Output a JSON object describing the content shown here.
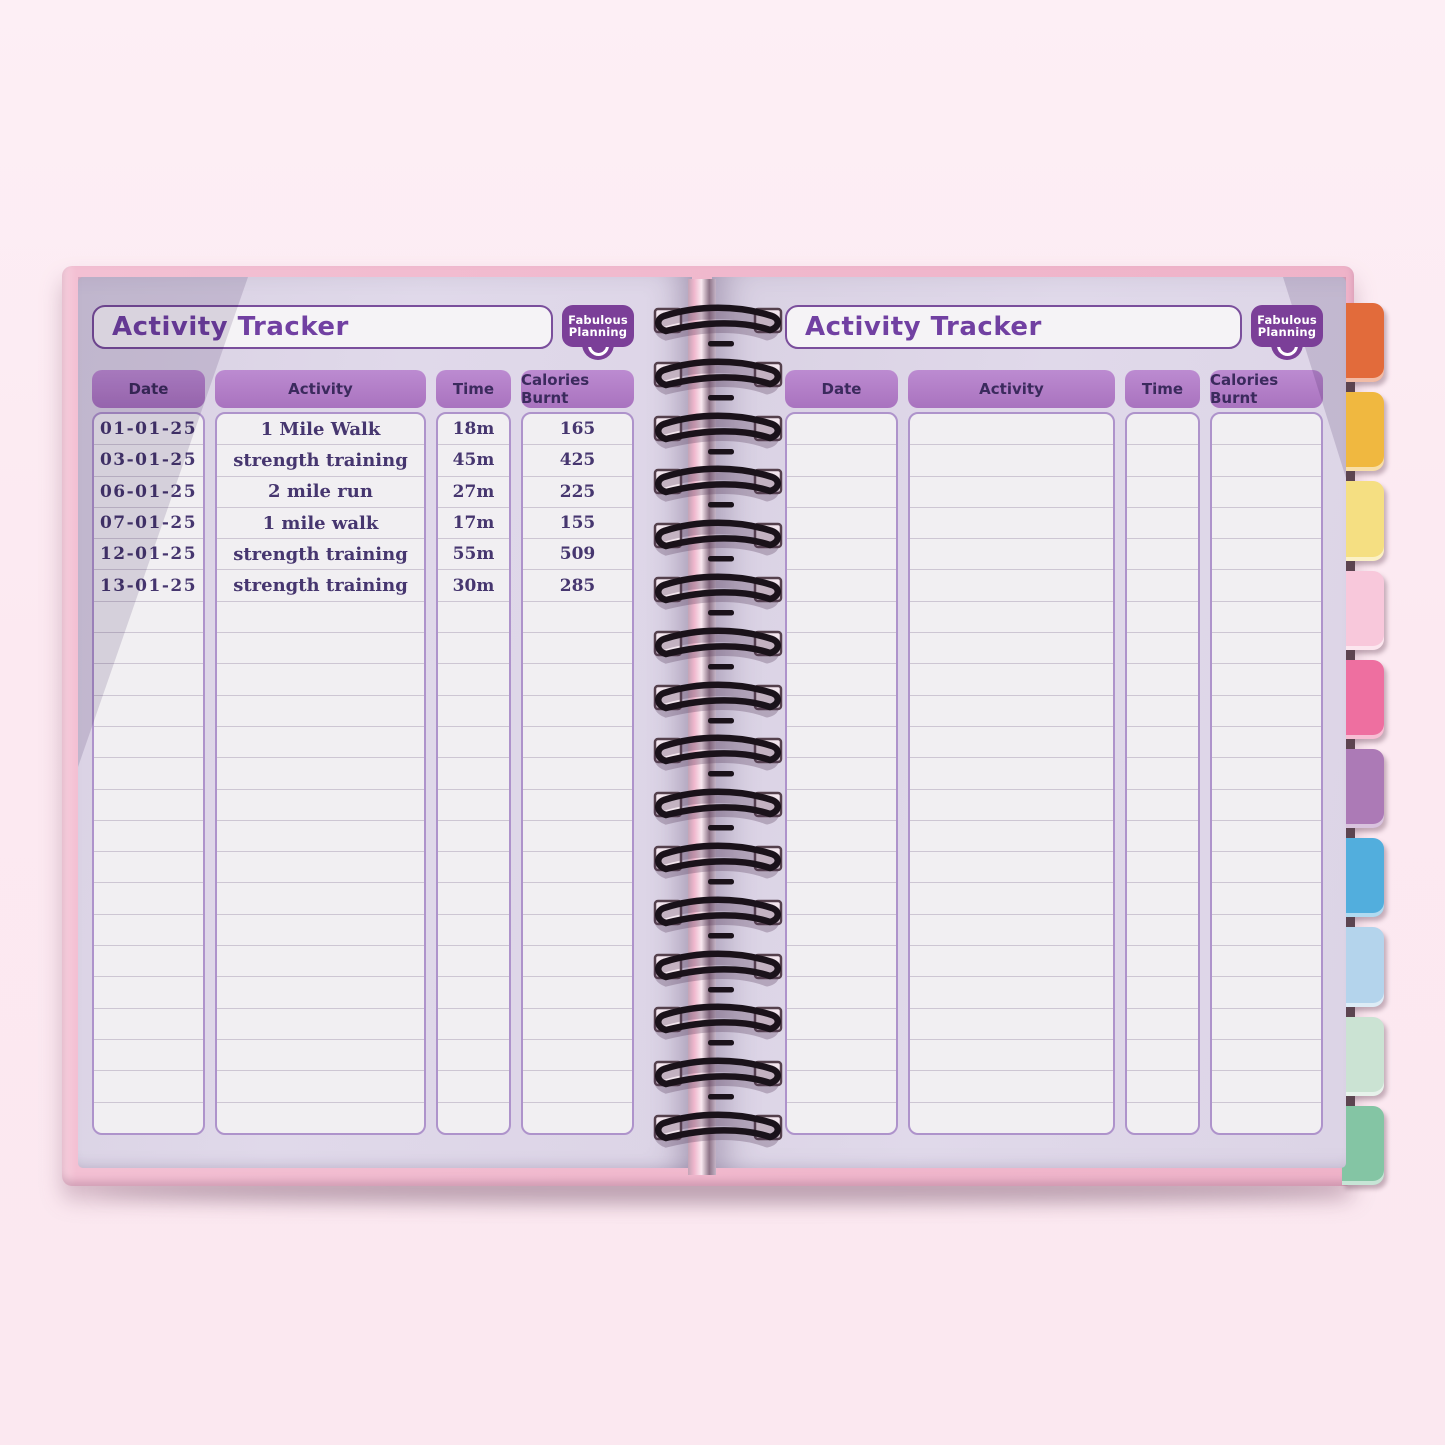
{
  "brand": {
    "name": "Fabulous Planning",
    "line1": "Fabulous",
    "line2": "Planning"
  },
  "left_page": {
    "title": "Activity Tracker",
    "columns": [
      "Date",
      "Activity",
      "Time",
      "Calories Burnt"
    ],
    "entries": [
      {
        "date": "01-01-25",
        "activity": "1 Mile Walk",
        "time": "18m",
        "calories": "165"
      },
      {
        "date": "03-01-25",
        "activity": "strength training",
        "time": "45m",
        "calories": "425"
      },
      {
        "date": "06-01-25",
        "activity": "2 mile run",
        "time": "27m",
        "calories": "225"
      },
      {
        "date": "07-01-25",
        "activity": "1 mile walk",
        "time": "17m",
        "calories": "155"
      },
      {
        "date": "12-01-25",
        "activity": "strength training",
        "time": "55m",
        "calories": "509"
      },
      {
        "date": "13-01-25",
        "activity": "strength training",
        "time": "30m",
        "calories": "285"
      }
    ],
    "empty_row_count": 17
  },
  "right_page": {
    "title": "Activity Tracker",
    "columns": [
      "Date",
      "Activity",
      "Time",
      "Calories Burnt"
    ],
    "entries": [],
    "empty_row_count": 23
  },
  "tabs": [
    {
      "name": "tab-orange",
      "color": "#E26B3B"
    },
    {
      "name": "tab-gold",
      "color": "#F0B840"
    },
    {
      "name": "tab-pale-yellow",
      "color": "#F5DF82"
    },
    {
      "name": "tab-pale-pink",
      "color": "#F8C8DB"
    },
    {
      "name": "tab-pink",
      "color": "#EE6FA0"
    },
    {
      "name": "tab-mauve",
      "color": "#AC7AB6"
    },
    {
      "name": "tab-blue",
      "color": "#52AEDD"
    },
    {
      "name": "tab-pale-blue",
      "color": "#B4D4EC"
    },
    {
      "name": "tab-mint",
      "color": "#CBE3D3"
    },
    {
      "name": "tab-green",
      "color": "#84C5A4"
    }
  ],
  "colors": {
    "background": "#FBE9F1",
    "cover_pink": "#F0B7CC",
    "page_lavender": "#DFD8E9",
    "corner_shade": "#CCC3D8",
    "title_text": "#7140A2",
    "box_border": "#7A4E9C",
    "header_fill": "#AF7AC4",
    "header_text": "#3B2A5D",
    "cell_bg": "#F1EFF2",
    "cell_border": "#AE93CB",
    "row_line": "#CDC6D3",
    "entry_text": "#46366F",
    "spiral_wire": "#1A121A",
    "logo_purple": "#7B3F98"
  },
  "layout_hints": {
    "spiral_ring_count": 16,
    "tab_count": 10,
    "rows_per_page": 23
  }
}
